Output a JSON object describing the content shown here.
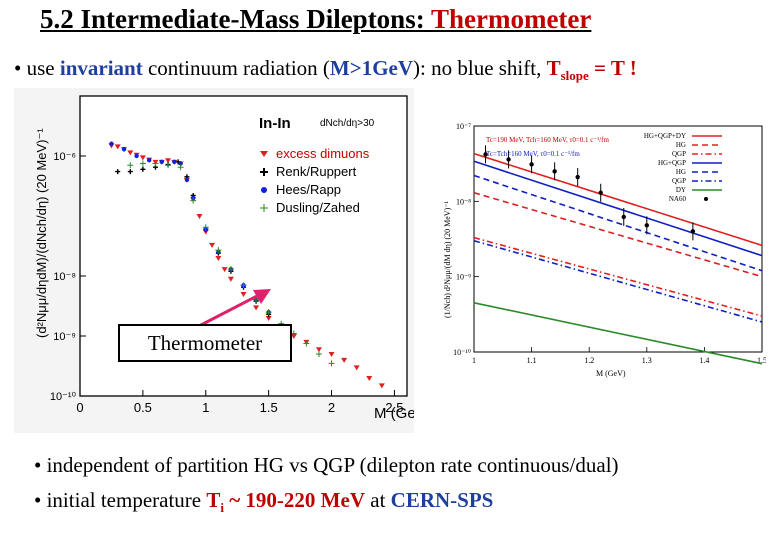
{
  "title": {
    "prefix": "5.2  Intermediate-Mass Dileptons: ",
    "accent": "Thermometer"
  },
  "subtitle": {
    "bullet": "•",
    "p1": " use ",
    "p2": "invariant",
    "p3": " continuum radiation (",
    "p4": "M>1GeV",
    "p5": "): no blue shift,  ",
    "p6": "T",
    "p7": "slope",
    "p8": " = T !"
  },
  "callout": "Thermometer",
  "bullets": {
    "b1": "• independent of partition HG vs QGP  (dilepton rate continuous/dual)",
    "b2a": "• initial temperature ",
    "b2b": "T",
    "b2c": "i",
    "b2d": " ~ 190-220 MeV",
    "b2e": " at ",
    "b2f": "CERN-SPS"
  },
  "colors": {
    "red": "#c00000",
    "blue": "#1f3f9f",
    "green": "#2a8a2a",
    "black": "#000000"
  },
  "chart_data": [
    {
      "type": "scatter",
      "title": "In-In",
      "annotation": "dNch/dη>30",
      "xlabel": "M (GeV)",
      "ylabel": "(d²Nμμ/dηdM)/(dNch/dη) (20 MeV)⁻¹",
      "xlim": [
        0,
        2.6
      ],
      "ylim": [
        1e-10,
        1e-05
      ],
      "yscale": "log",
      "xticks": [
        "0",
        "0.5",
        "1",
        "1.5",
        "2",
        "2.5"
      ],
      "yticks": [
        "10⁻⁶",
        "10⁻⁸",
        "10⁻⁹",
        "10⁻¹⁰"
      ],
      "legend": [
        "excess dimuons",
        "Renk/Ruppert",
        "Hees/Rapp",
        "Dusling/Zahed"
      ],
      "series": [
        {
          "name": "excess dimuons",
          "color": "#e02020",
          "x": [
            0.25,
            0.3,
            0.35,
            0.4,
            0.45,
            0.5,
            0.55,
            0.6,
            0.65,
            0.7,
            0.75,
            0.8,
            0.85,
            0.9,
            0.95,
            1.0,
            1.05,
            1.1,
            1.15,
            1.2,
            1.3,
            1.4,
            1.5,
            1.6,
            1.7,
            1.8,
            1.9,
            2.0,
            2.1,
            2.2,
            2.3,
            2.4
          ],
          "y": [
            1.5e-06,
            1.45e-06,
            1.3e-06,
            1.15e-06,
            1.05e-06,
            9.5e-07,
            8.7e-07,
            8e-07,
            8e-07,
            8.5e-07,
            8e-07,
            7.5e-07,
            4e-07,
            1.9e-07,
            1e-07,
            5.5e-08,
            3.3e-08,
            2e-08,
            1.3e-08,
            9e-09,
            5e-09,
            3e-09,
            2e-09,
            1.5e-09,
            1e-09,
            8e-10,
            6e-10,
            5e-10,
            4e-10,
            3e-10,
            2e-10,
            1.5e-10
          ]
        },
        {
          "name": "Renk/Ruppert",
          "color": "#000000",
          "x": [
            0.3,
            0.4,
            0.5,
            0.6,
            0.7,
            0.78,
            0.85,
            0.9,
            1.0,
            1.1,
            1.2,
            1.3,
            1.4,
            1.5,
            1.6
          ],
          "y": [
            5.5e-07,
            5.5e-07,
            6e-07,
            6.5e-07,
            7.2e-07,
            8e-07,
            4.5e-07,
            2.2e-07,
            6e-08,
            2.4e-08,
            1.2e-08,
            6.5e-09,
            3.8e-09,
            2.3e-09,
            1.5e-09
          ]
        },
        {
          "name": "Hees/Rapp",
          "color": "#1020e0",
          "x": [
            0.25,
            0.35,
            0.45,
            0.55,
            0.65,
            0.75,
            0.8,
            0.85,
            0.9,
            1.0,
            1.1,
            1.2,
            1.3,
            1.4,
            1.5
          ],
          "y": [
            1.6e-06,
            1.3e-06,
            1e-06,
            8.5e-07,
            8e-07,
            8e-07,
            7.5e-07,
            4e-07,
            2e-07,
            6e-08,
            2.5e-08,
            1.3e-08,
            7e-09,
            4e-09,
            2.5e-09
          ]
        },
        {
          "name": "Dusling/Zahed",
          "color": "#2a8a2a",
          "x": [
            0.4,
            0.5,
            0.6,
            0.7,
            0.8,
            0.9,
            1.0,
            1.1,
            1.2,
            1.3,
            1.4,
            1.5,
            1.6,
            1.7,
            1.8,
            1.9,
            2.0
          ],
          "y": [
            7e-07,
            7.5e-07,
            7.5e-07,
            7e-07,
            6.5e-07,
            1.8e-07,
            6.5e-08,
            2.7e-08,
            1.3e-08,
            7e-09,
            4e-09,
            2.5e-09,
            1.6e-09,
            1.1e-09,
            7.5e-10,
            5e-10,
            3.5e-10
          ]
        }
      ]
    },
    {
      "type": "line",
      "xlabel": "M (GeV)",
      "ylabel": "(1/Nch) d²Nμμ/(dM dη) (20 MeV)⁻¹",
      "xlim": [
        1.0,
        1.5
      ],
      "ylim": [
        1e-10,
        1e-07
      ],
      "yscale": "log",
      "xticks": [
        "1",
        "1.1",
        "1.2",
        "1.3",
        "1.4",
        "1.5"
      ],
      "yticks": [
        "10⁻⁷",
        "10⁻⁸",
        "10⁻⁹",
        "10⁻¹⁰"
      ],
      "annotations": [
        "Tc=190 MeV, Tch=160 MeV, τ0=0.1 c⁻¹/fm",
        "Tc=Tch=160 MeV, τ0=0.1 c⁻¹/fm"
      ],
      "legend": [
        "HG+QGP+DY",
        "HG",
        "QGP",
        "HG+QGP",
        "HG",
        "QGP",
        "DY",
        "NA60"
      ],
      "series": [
        {
          "name": "HG+QGP+DY",
          "color": "#e02020",
          "style": "solid",
          "x": [
            1.0,
            1.5
          ],
          "y": [
            4.3e-08,
            2.6e-09
          ]
        },
        {
          "name": "HG",
          "color": "#e02020",
          "style": "dashed",
          "x": [
            1.0,
            1.5
          ],
          "y": [
            1.3e-08,
            1e-09
          ]
        },
        {
          "name": "QGP",
          "color": "#e02020",
          "style": "dashdot",
          "x": [
            1.0,
            1.5
          ],
          "y": [
            3.3e-09,
            3e-10
          ]
        },
        {
          "name": "HG+QGP",
          "color": "#1020c0",
          "style": "solid",
          "x": [
            1.0,
            1.5
          ],
          "y": [
            3.4e-08,
            1.9e-09
          ]
        },
        {
          "name": "HG",
          "color": "#1020c0",
          "style": "dashed",
          "x": [
            1.0,
            1.5
          ],
          "y": [
            2.2e-08,
            1.2e-09
          ]
        },
        {
          "name": "QGP",
          "color": "#1020c0",
          "style": "dashdot",
          "x": [
            1.0,
            1.5
          ],
          "y": [
            3e-09,
            2.5e-10
          ]
        },
        {
          "name": "DY",
          "color": "#2a8a2a",
          "style": "solid",
          "x": [
            1.0,
            1.5
          ],
          "y": [
            4.5e-10,
            7e-11
          ]
        },
        {
          "name": "NA60",
          "color": "#000000",
          "style": "points",
          "x": [
            1.02,
            1.06,
            1.1,
            1.14,
            1.18,
            1.22,
            1.26,
            1.3,
            1.38
          ],
          "y": [
            4.2e-08,
            3.6e-08,
            3.1e-08,
            2.5e-08,
            2.1e-08,
            1.3e-08,
            6.2e-09,
            4.8e-09,
            4e-09
          ]
        }
      ]
    }
  ]
}
